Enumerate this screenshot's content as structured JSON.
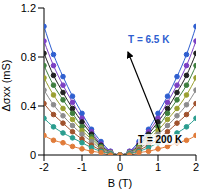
{
  "chart_data": {
    "type": "line",
    "x_label": "B (T)",
    "y_label": "Δσxx (mS)",
    "x": [
      -2,
      -1.75,
      -1.5,
      -1.25,
      -1,
      -0.75,
      -0.5,
      -0.25,
      0,
      0.25,
      0.5,
      0.75,
      1,
      1.25,
      1.5,
      1.75,
      2
    ],
    "xlim": [
      -2,
      2
    ],
    "xticks": [
      -2,
      -1,
      0,
      1,
      2
    ],
    "ylim": [
      0,
      1.2
    ],
    "yticks": [
      0,
      0.4,
      0.8,
      1.2
    ],
    "grid": false,
    "annotations": [
      "T = 6.5 K",
      "T = 200 K"
    ],
    "series": [
      {
        "color": "#2f5fd0",
        "marker": "o",
        "values": [
          1.05,
          0.82,
          0.64,
          0.48,
          0.34,
          0.21,
          0.11,
          0.03,
          0,
          0.03,
          0.11,
          0.21,
          0.34,
          0.48,
          0.64,
          0.82,
          1.05
        ]
      },
      {
        "color": "#7b3fc4",
        "marker": "o",
        "values": [
          0.93,
          0.73,
          0.57,
          0.43,
          0.3,
          0.19,
          0.09,
          0.03,
          0,
          0.03,
          0.09,
          0.19,
          0.3,
          0.43,
          0.57,
          0.73,
          0.93
        ]
      },
      {
        "color": "#222222",
        "marker": "o",
        "values": [
          0.83,
          0.65,
          0.51,
          0.38,
          0.27,
          0.17,
          0.08,
          0.02,
          0,
          0.02,
          0.08,
          0.17,
          0.27,
          0.38,
          0.51,
          0.65,
          0.83
        ]
      },
      {
        "color": "#3f7f3f",
        "marker": "o",
        "values": [
          0.73,
          0.57,
          0.45,
          0.34,
          0.23,
          0.15,
          0.07,
          0.02,
          0,
          0.02,
          0.07,
          0.15,
          0.23,
          0.34,
          0.45,
          0.57,
          0.73
        ]
      },
      {
        "color": "#9aa030",
        "marker": "o",
        "values": [
          0.63,
          0.49,
          0.38,
          0.29,
          0.2,
          0.13,
          0.06,
          0.02,
          0,
          0.02,
          0.06,
          0.13,
          0.2,
          0.29,
          0.38,
          0.49,
          0.63
        ]
      },
      {
        "color": "#8c8c8c",
        "marker": "o",
        "values": [
          0.53,
          0.41,
          0.32,
          0.24,
          0.17,
          0.11,
          0.05,
          0.02,
          0,
          0.02,
          0.05,
          0.11,
          0.17,
          0.24,
          0.32,
          0.41,
          0.53
        ]
      },
      {
        "color": "#a0522d",
        "marker": "o",
        "values": [
          0.42,
          0.33,
          0.26,
          0.19,
          0.13,
          0.08,
          0.04,
          0.01,
          0,
          0.01,
          0.04,
          0.08,
          0.13,
          0.19,
          0.26,
          0.33,
          0.42
        ]
      },
      {
        "color": "#2a9d8f",
        "marker": "o",
        "values": [
          0.3,
          0.23,
          0.18,
          0.14,
          0.1,
          0.06,
          0.03,
          0.01,
          0,
          0.01,
          0.03,
          0.06,
          0.1,
          0.14,
          0.18,
          0.23,
          0.3
        ]
      },
      {
        "color": "#e07b39",
        "marker": "o",
        "values": [
          0.16,
          0.12,
          0.1,
          0.07,
          0.05,
          0.03,
          0.02,
          0,
          0,
          0,
          0.02,
          0.03,
          0.05,
          0.07,
          0.1,
          0.12,
          0.16
        ]
      }
    ]
  }
}
